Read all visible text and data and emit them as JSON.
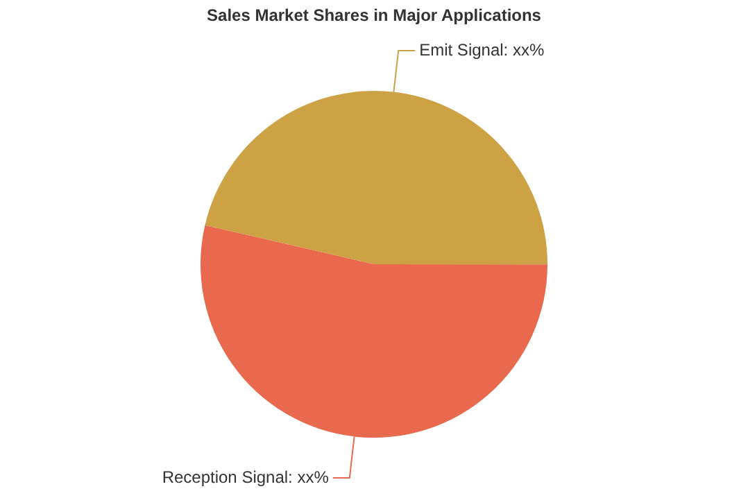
{
  "chart_data": {
    "type": "pie",
    "title": "Sales Market Shares in Major Applications",
    "categories": [
      "Emit Signal",
      "Reception Signal"
    ],
    "values": [
      46.4,
      53.6
    ],
    "value_labels": [
      "xx%",
      "xx%"
    ],
    "colors": [
      "#cca244",
      "#e8694d"
    ],
    "legend": false
  }
}
